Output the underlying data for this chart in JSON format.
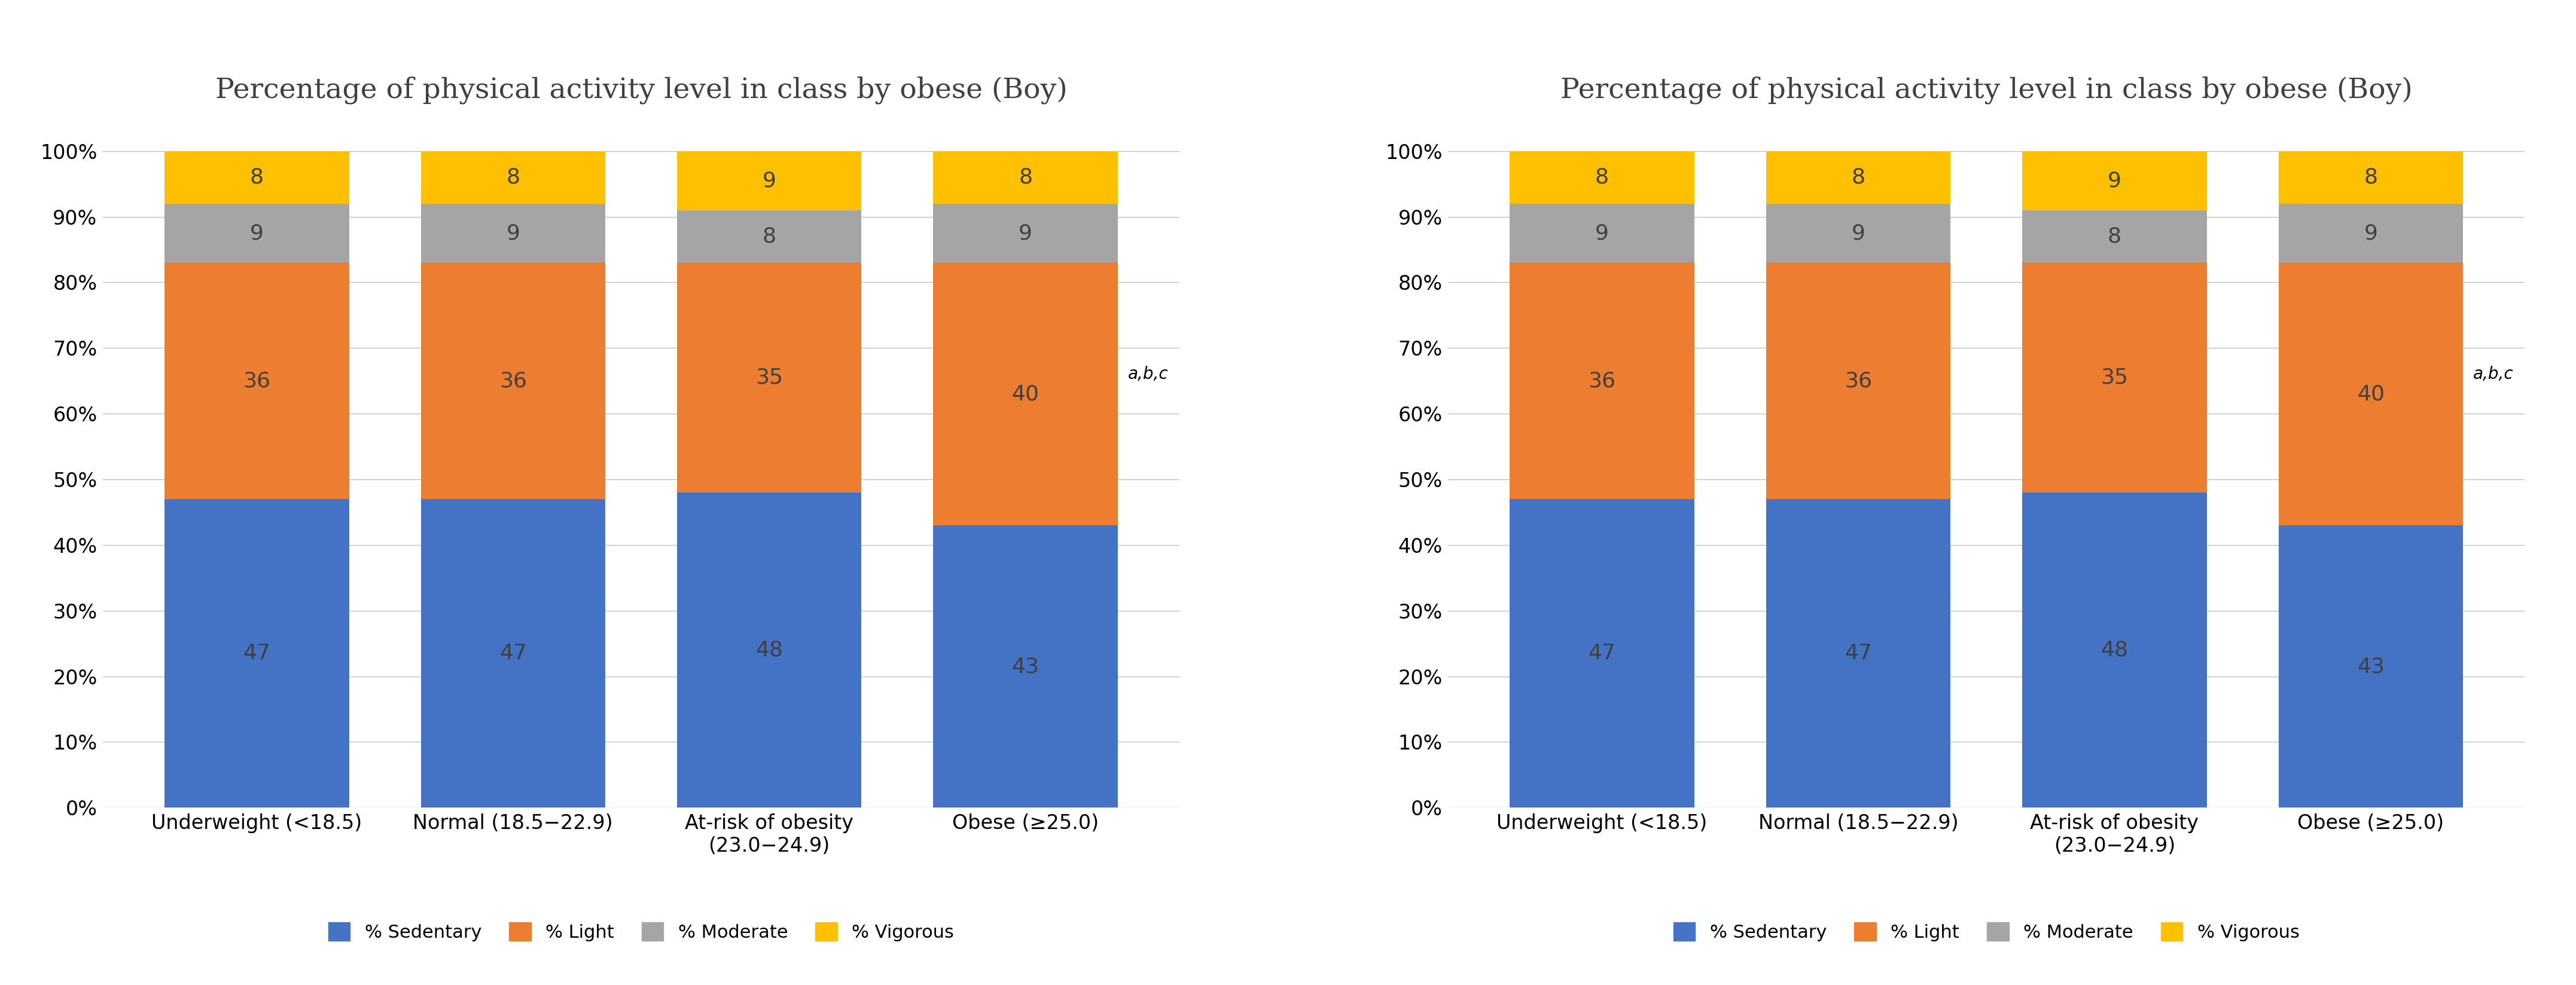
{
  "title": "Percentage of physical activity level in class by obese (Boy)",
  "categories": [
    "Underweight (<18.5)",
    "Normal (18.5−22.9)",
    "At-risk of obesity\n(23.0−24.9)",
    "Obese (≥25.0)"
  ],
  "sedentary": [
    47,
    47,
    48,
    43
  ],
  "light": [
    36,
    36,
    35,
    40
  ],
  "moderate": [
    9,
    9,
    8,
    9
  ],
  "vigorous": [
    8,
    8,
    9,
    8
  ],
  "colors": {
    "sedentary": "#4472C4",
    "light": "#ED7D31",
    "moderate": "#A5A5A5",
    "vigorous": "#FFC000"
  },
  "annotation_obese": "a,b,c",
  "yticks": [
    0,
    10,
    20,
    30,
    40,
    50,
    60,
    70,
    80,
    90,
    100
  ],
  "legend_labels": [
    "% Sedentary",
    "% Light",
    "% Moderate",
    "% Vigorous"
  ],
  "bar_width": 0.72,
  "title_fontsize": 34,
  "tick_fontsize": 24,
  "legend_fontsize": 22,
  "annotation_fontsize": 20,
  "value_fontsize": 26,
  "text_color_in_bar": "#404040"
}
